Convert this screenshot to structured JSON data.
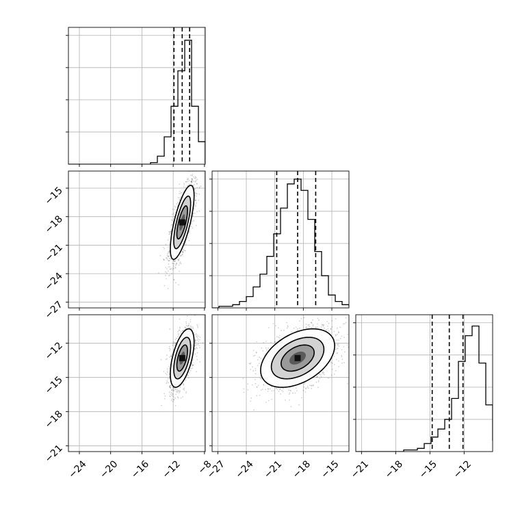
{
  "chart_data": {
    "type": "corner",
    "grid": true,
    "parameters": [
      {
        "ticks": [
          -24,
          -20,
          -16,
          -12,
          -8
        ],
        "lim": [
          -25.4,
          -7.9
        ],
        "tick_labels": [
          "−24",
          "−20",
          "−16",
          "−12",
          "−8"
        ]
      },
      {
        "ticks": [
          -27,
          -24,
          -21,
          -18,
          -15
        ],
        "lim": [
          -27.6,
          -13.2
        ],
        "tick_labels": [
          "−27",
          "−24",
          "−21",
          "−18",
          "−15"
        ]
      },
      {
        "ticks": [
          -21,
          -18,
          -15,
          -12
        ],
        "lim": [
          -21.5,
          -9.5
        ],
        "tick_labels": [
          "−21",
          "−18",
          "−15",
          "−12"
        ]
      }
    ],
    "histograms": [
      {
        "param": 0,
        "bin_start": -25.4,
        "bin_width": 0.875,
        "counts": [
          0,
          0,
          0,
          0,
          0,
          0,
          0,
          0,
          0,
          0,
          0,
          0,
          0.01,
          0.05,
          0.17,
          0.36,
          0.58,
          0.77,
          0.36,
          0.14,
          0.01
        ],
        "quantiles": [
          -11.9,
          -10.85,
          -9.9
        ]
      },
      {
        "param": 1,
        "bin_start": -27.6,
        "bin_width": 0.72,
        "counts": [
          0,
          0.01,
          0.01,
          0.02,
          0.04,
          0.07,
          0.13,
          0.21,
          0.32,
          0.46,
          0.62,
          0.77,
          0.8,
          0.73,
          0.55,
          0.35,
          0.2,
          0.08,
          0.04,
          0.02,
          0.01
        ],
        "quantiles": [
          -20.8,
          -18.6,
          -16.7
        ]
      },
      {
        "param": 2,
        "bin_start": -21.5,
        "bin_width": 0.6,
        "counts": [
          0,
          0,
          0,
          0,
          0,
          0,
          0,
          0.01,
          0.01,
          0.02,
          0.05,
          0.09,
          0.14,
          0.2,
          0.33,
          0.56,
          0.72,
          0.78,
          0.55,
          0.29,
          0.07,
          0.01
        ],
        "quantiles": [
          -14.8,
          -13.3,
          -12.1
        ]
      }
    ],
    "density_panels": [
      {
        "row": 1,
        "col": 0,
        "mean": [
          -10.85,
          -18.6
        ],
        "sd": [
          0.8,
          2.05
        ],
        "rho": 0.72
      },
      {
        "row": 2,
        "col": 0,
        "mean": [
          -10.85,
          -13.3
        ],
        "sd": [
          0.8,
          1.35
        ],
        "rho": 0.55
      },
      {
        "row": 2,
        "col": 1,
        "mean": [
          -18.6,
          -13.3
        ],
        "sd": [
          2.05,
          1.35
        ],
        "rho": 0.42
      }
    ]
  }
}
